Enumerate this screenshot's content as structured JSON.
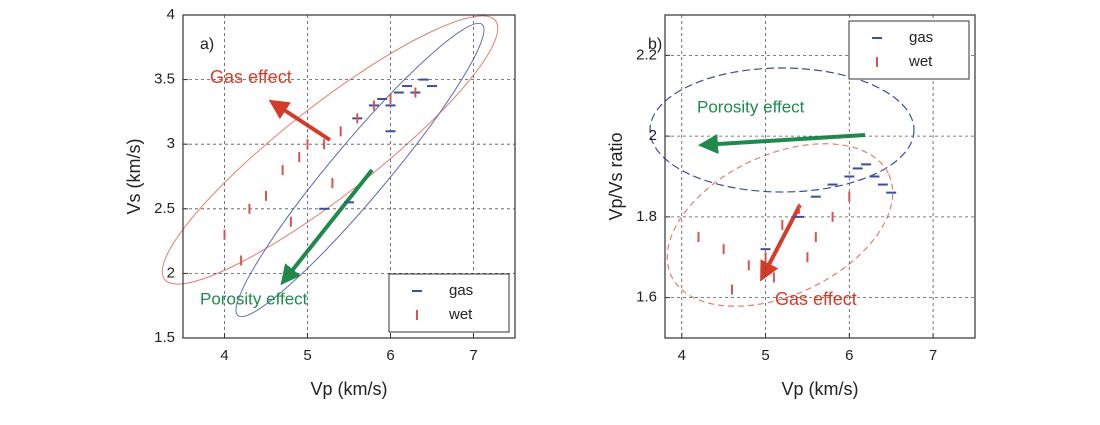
{
  "chart_data": [
    {
      "type": "scatter",
      "xlabel": "Vp (km/s)",
      "ylabel": "Vs (km/s)",
      "xlim": [
        3.5,
        7.5
      ],
      "xticks": [
        4,
        5,
        6,
        7
      ],
      "ylim": [
        1.5,
        4
      ],
      "yticks": [
        1.5,
        2,
        2.5,
        3,
        3.5,
        4
      ],
      "grid": true,
      "legend": "lower right",
      "annotations": [
        {
          "text": "a)",
          "color": "#222222"
        },
        {
          "text": "Gas effect",
          "color": "#d63b2a"
        },
        {
          "text": "Porosity effect",
          "color": "#1f8a4c"
        }
      ],
      "series": [
        {
          "name": "gas",
          "color": "#3a4fa0",
          "x": [
            5.6,
            5.8,
            5.9,
            6.0,
            6.1,
            6.2,
            6.3,
            6.4,
            6.5,
            5.2,
            5.5,
            6.0
          ],
          "y": [
            3.2,
            3.3,
            3.35,
            3.3,
            3.4,
            3.45,
            3.4,
            3.5,
            3.45,
            2.5,
            2.55,
            3.1
          ]
        },
        {
          "name": "wet",
          "color": "#d9534f",
          "x": [
            4.0,
            4.3,
            4.5,
            4.7,
            4.9,
            5.0,
            5.2,
            5.4,
            5.6,
            5.8,
            6.0,
            6.3,
            4.2,
            4.8,
            5.3
          ],
          "y": [
            2.3,
            2.5,
            2.6,
            2.8,
            2.9,
            3.0,
            3.0,
            3.1,
            3.2,
            3.3,
            3.35,
            3.4,
            2.1,
            2.4,
            2.7
          ]
        }
      ]
    },
    {
      "type": "scatter",
      "xlabel": "Vp (km/s)",
      "ylabel": "Vp/Vs ratio",
      "xlim": [
        3.8,
        7.5
      ],
      "xticks": [
        4,
        5,
        6,
        7
      ],
      "ylim": [
        1.5,
        2.3
      ],
      "yticks": [
        1.6,
        1.8,
        2,
        2.2
      ],
      "grid": true,
      "legend": "upper right",
      "annotations": [
        {
          "text": "b)",
          "color": "#222222"
        },
        {
          "text": "Porosity effect",
          "color": "#1f8a4c"
        },
        {
          "text": "Gas effect",
          "color": "#d63b2a"
        }
      ],
      "series": [
        {
          "name": "gas",
          "color": "#3a4fa0",
          "x": [
            5.6,
            5.8,
            6.0,
            6.1,
            6.2,
            6.3,
            6.4,
            6.5,
            5.0,
            5.4
          ],
          "y": [
            1.85,
            1.88,
            1.9,
            1.92,
            1.93,
            1.9,
            1.88,
            1.86,
            1.72,
            1.8
          ]
        },
        {
          "name": "wet",
          "color": "#d9534f",
          "x": [
            4.2,
            4.5,
            4.8,
            5.0,
            5.2,
            5.4,
            5.6,
            5.8,
            6.0,
            4.6,
            5.1,
            5.5
          ],
          "y": [
            1.75,
            1.72,
            1.68,
            1.7,
            1.78,
            1.82,
            1.75,
            1.8,
            1.85,
            1.62,
            1.65,
            1.7
          ]
        }
      ]
    }
  ]
}
